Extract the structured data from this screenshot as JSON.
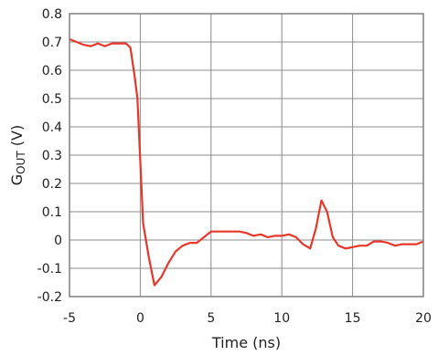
{
  "chart_data": {
    "type": "line",
    "xlabel": "Time (ns)",
    "ylabel": {
      "main": "G",
      "sub": "OUT",
      "unit": " (V)"
    },
    "xlim": [
      -5,
      20
    ],
    "ylim": [
      -0.2,
      0.8
    ],
    "xticks": [
      -5,
      0,
      5,
      10,
      15,
      20
    ],
    "xtick_labels": [
      "-5",
      "0",
      "5",
      "10",
      "15",
      "20"
    ],
    "yticks": [
      -0.2,
      -0.1,
      0,
      0.1,
      0.2,
      0.3,
      0.4,
      0.5,
      0.6,
      0.7,
      0.8
    ],
    "ytick_labels": [
      "-0.2",
      "-0.1",
      "0",
      "0.1",
      "0.2",
      "0.3",
      "0.4",
      "0.5",
      "0.6",
      "0.7",
      "0.8"
    ],
    "grid": true,
    "line_color": "#e8372a",
    "series": [
      {
        "x": [
          -5.0,
          -4.5,
          -4.0,
          -3.5,
          -3.0,
          -2.5,
          -2.0,
          -1.5,
          -1.0,
          -0.7,
          -0.4,
          -0.2,
          0.2,
          0.6,
          1.0,
          1.5,
          2.0,
          2.5,
          3.0,
          3.5,
          4.0,
          5.0,
          6.0,
          7.0,
          7.5,
          8.0,
          8.5,
          9.0,
          9.5,
          10.0,
          10.5,
          11.0,
          11.5,
          12.0,
          12.4,
          12.8,
          13.2,
          13.6,
          14.0,
          14.5,
          15.0,
          15.5,
          16.0,
          16.5,
          17.0,
          17.5,
          18.0,
          18.5,
          19.0,
          19.5,
          20.0
        ],
        "y": [
          0.71,
          0.7,
          0.69,
          0.685,
          0.695,
          0.685,
          0.695,
          0.695,
          0.695,
          0.68,
          0.58,
          0.5,
          0.06,
          -0.06,
          -0.16,
          -0.13,
          -0.08,
          -0.04,
          -0.02,
          -0.01,
          -0.01,
          0.03,
          0.03,
          0.03,
          0.025,
          0.015,
          0.02,
          0.01,
          0.015,
          0.015,
          0.02,
          0.01,
          -0.015,
          -0.03,
          0.04,
          0.14,
          0.1,
          0.01,
          -0.02,
          -0.03,
          -0.025,
          -0.02,
          -0.02,
          -0.005,
          -0.005,
          -0.01,
          -0.02,
          -0.015,
          -0.015,
          -0.015,
          -0.005
        ]
      }
    ]
  }
}
